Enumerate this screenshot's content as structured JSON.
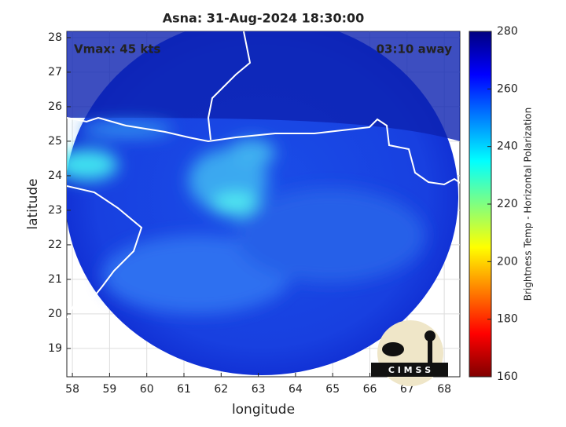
{
  "chart_data": {
    "type": "image",
    "title": "Asna: 31-Aug-2024 18:30:00",
    "annotations": [
      "Vmax: 45 kts",
      "03:10 away"
    ],
    "xlabel": "longitude",
    "ylabel": "latitude",
    "xlim": [
      57.85,
      68.42
    ],
    "xticks": [
      58,
      59,
      60,
      61,
      62,
      63,
      64,
      65,
      66,
      67,
      68
    ],
    "ylim": [
      18.18,
      28.18
    ],
    "yticks": [
      19,
      20,
      21,
      22,
      23,
      24,
      25,
      26,
      27,
      28
    ],
    "grid": true,
    "colorbar": {
      "label": "Brightness Temp - Horizontal Polarization",
      "lim": [
        160,
        280
      ],
      "ticks": [
        160,
        180,
        200,
        220,
        240,
        260,
        280
      ]
    },
    "logo": "C I M S S"
  }
}
